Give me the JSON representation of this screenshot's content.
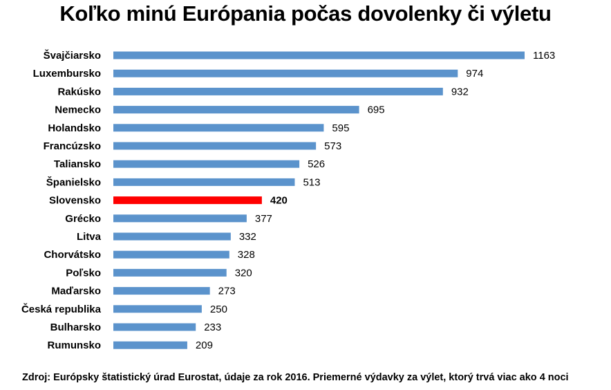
{
  "chart_data": {
    "type": "bar",
    "orientation": "horizontal",
    "title": "Koľko minú Európania počas dovolenky či výletu",
    "categories": [
      "Švajčiarsko",
      "Luxembursko",
      "Rakúsko",
      "Nemecko",
      "Holandsko",
      "Francúzsko",
      "Taliansko",
      "Španielsko",
      "Slovensko",
      "Grécko",
      "Litva",
      "Chorvátsko",
      "Poľsko",
      "Maďarsko",
      "Česká republika",
      "Bulharsko",
      "Rumunsko"
    ],
    "values": [
      1163,
      974,
      932,
      695,
      595,
      573,
      526,
      513,
      420,
      377,
      332,
      328,
      320,
      273,
      250,
      233,
      209
    ],
    "highlight": "Slovensko",
    "bar_color": "#5b93cc",
    "highlight_color": "#ff0000",
    "xlim": [
      0,
      1163
    ],
    "grid": false,
    "legend": "none"
  },
  "footnote": "Zdroj: Európsky štatistický úrad Eurostat, údaje za rok 2016. Priemerné výdavky za výlet, ktorý trvá viac ako 4 noci"
}
